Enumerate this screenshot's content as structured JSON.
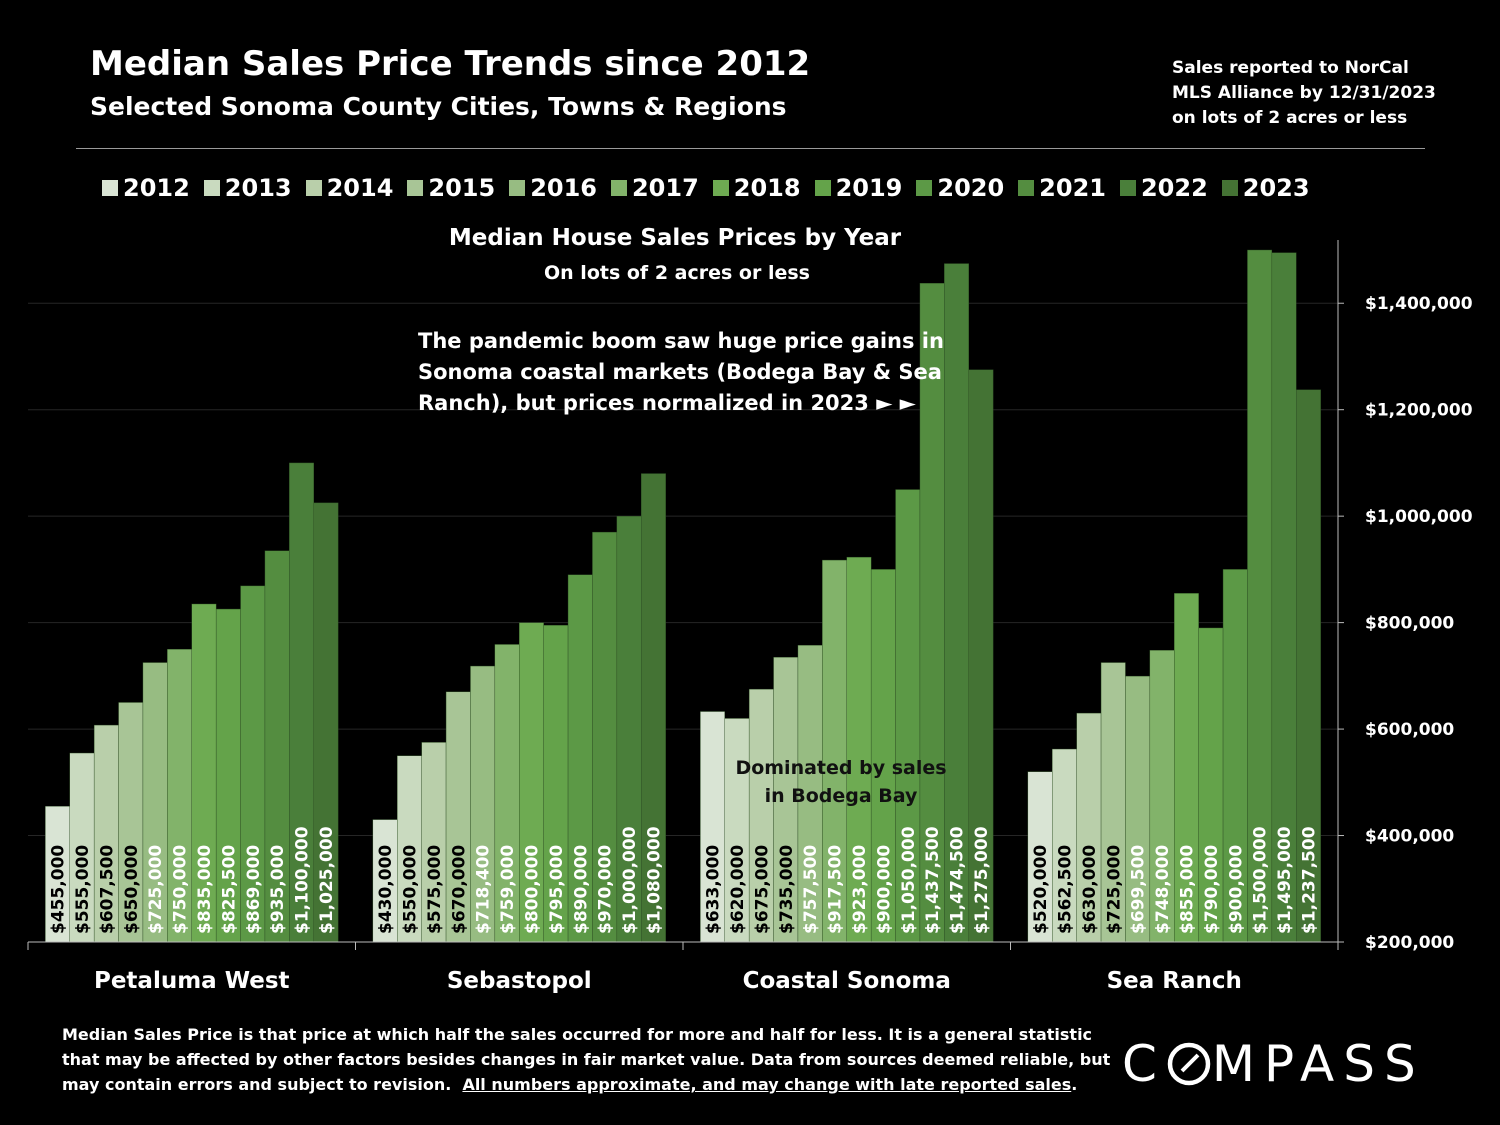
{
  "header": {
    "title": "Median Sales Price Trends since 2012",
    "subtitle": "Selected Sonoma County Cities, Towns & Regions",
    "source_note": [
      "Sales reported to NorCal",
      "MLS Alliance by 12/31/2023",
      "on lots of 2 acres or less"
    ]
  },
  "colors": {
    "years": [
      "#d9e4d4",
      "#c9dabf",
      "#b9cfaa",
      "#a8c596",
      "#97bc82",
      "#82b36a",
      "#6eab52",
      "#64a34a",
      "#5c9946",
      "#548d40",
      "#4a7f3a",
      "#447334"
    ]
  },
  "chart_data": {
    "type": "bar",
    "title": "Median House Sales Prices by Year",
    "subtitle": "On lots of 2 acres or less",
    "categories": [
      "Petaluma West",
      "Sebastopol",
      "Coastal Sonoma",
      "Sea Ranch"
    ],
    "series": [
      {
        "name": "2012",
        "values": [
          455000,
          430000,
          633000,
          520000
        ]
      },
      {
        "name": "2013",
        "values": [
          555000,
          550000,
          620000,
          562500
        ]
      },
      {
        "name": "2014",
        "values": [
          607500,
          575000,
          675000,
          630000
        ]
      },
      {
        "name": "2015",
        "values": [
          650000,
          670000,
          735000,
          725000
        ]
      },
      {
        "name": "2016",
        "values": [
          725000,
          718400,
          757500,
          699500
        ]
      },
      {
        "name": "2017",
        "values": [
          750000,
          759000,
          917500,
          748000
        ]
      },
      {
        "name": "2018",
        "values": [
          835000,
          800000,
          923000,
          855000
        ]
      },
      {
        "name": "2019",
        "values": [
          825500,
          795000,
          900000,
          790000
        ]
      },
      {
        "name": "2020",
        "values": [
          869000,
          890000,
          1050000,
          900000
        ]
      },
      {
        "name": "2021",
        "values": [
          935000,
          970000,
          1437500,
          1500000
        ]
      },
      {
        "name": "2022",
        "values": [
          1100000,
          1000000,
          1474500,
          1495000
        ]
      },
      {
        "name": "2023",
        "values": [
          1025000,
          1080000,
          1275000,
          1237500
        ]
      }
    ],
    "labels": [
      [
        "$455,000",
        "$555,000",
        "$607,500",
        "$650,000",
        "$725,000",
        "$750,000",
        "$835,000",
        "$825,500",
        "$869,000",
        "$935,000",
        "$1,100,000",
        "$1,025,000"
      ],
      [
        "$430,000",
        "$550,000",
        "$575,000",
        "$670,000",
        "$718,400",
        "$759,000",
        "$800,000",
        "$795,000",
        "$890,000",
        "$970,000",
        "$1,000,000",
        "$1,080,000"
      ],
      [
        "$633,000",
        "$620,000",
        "$675,000",
        "$735,000",
        "$757,500",
        "$917,500",
        "$923,000",
        "$900,000",
        "$1,050,000",
        "$1,437,500",
        "$1,474,500",
        "$1,275,000"
      ],
      [
        "$520,000",
        "$562,500",
        "$630,000",
        "$725,000",
        "$699,500",
        "$748,000",
        "$855,000",
        "$790,000",
        "$900,000",
        "$1,500,000",
        "$1,495,000",
        "$1,237,500"
      ]
    ],
    "ylim": [
      200000,
      1500000
    ],
    "yticks": [
      200000,
      400000,
      600000,
      800000,
      1000000,
      1200000,
      1400000
    ],
    "ytick_labels": [
      "$200,000",
      "$400,000",
      "$600,000",
      "$800,000",
      "$1,000,000",
      "$1,200,000",
      "$1,400,000"
    ],
    "y_axis_side": "right",
    "grid": true,
    "annotations": {
      "pandemic": [
        "The pandemic boom saw huge price gains in",
        "Sonoma coastal markets (Bodega Bay & Sea",
        "Ranch), but prices normalized in 2023 ► ►"
      ],
      "bodega": [
        "Dominated by sales",
        "in Bodega Bay"
      ]
    }
  },
  "footer": {
    "lines": [
      "Median Sales Price is that price at which half the sales occurred for more and half for less. It is a general statistic",
      "that may be affected by other factors besides changes in fair market value. Data from sources deemed reliable, but",
      "may contain errors and subject to revision."
    ],
    "underlined": "All numbers approximate, and may change with late reported sales",
    "end_punct": "."
  },
  "brand": {
    "logo_text_before": "C",
    "logo_text_after": "MPASS"
  }
}
